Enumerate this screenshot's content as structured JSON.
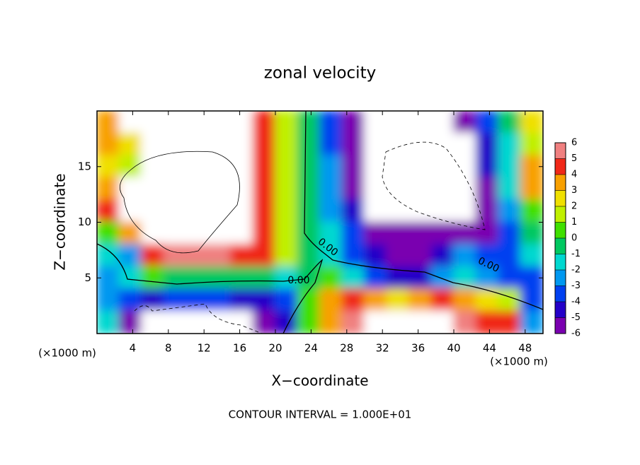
{
  "chart_data": {
    "type": "contour",
    "title": "zonal velocity",
    "x_label": "X−coordinate",
    "y_label": "Z−coordinate",
    "x_unit_labels": [
      "(×1000 m)",
      "(×1000 m)"
    ],
    "footer": "CONTOUR INTERVAL = 1.000E+01",
    "contour_labels": [
      "0.00",
      "0.00",
      "0.00"
    ],
    "xlim": [
      0,
      50
    ],
    "ylim": [
      0,
      20
    ],
    "xticks": [
      4,
      8,
      12,
      16,
      20,
      24,
      28,
      32,
      36,
      40,
      44,
      48
    ],
    "yticks": [
      5,
      10,
      15
    ],
    "x": [
      1.25,
      3.75,
      6.25,
      8.75,
      11.25,
      13.75,
      16.25,
      18.75,
      21.25,
      23.75,
      26.25,
      28.75,
      31.25,
      33.75,
      36.25,
      38.75,
      41.25,
      43.75,
      46.25,
      48.75
    ],
    "y": [
      19,
      17,
      15,
      13,
      11,
      9,
      7,
      5,
      3,
      1
    ],
    "z": [
      [
        4,
        10,
        10,
        10,
        10,
        10,
        10,
        5,
        2,
        0,
        -3,
        -5,
        -10,
        -10,
        -10,
        -10,
        -5,
        -3,
        0,
        3
      ],
      [
        4,
        3,
        10,
        10,
        10,
        10,
        10,
        5,
        2,
        0,
        -3,
        -5,
        -10,
        -10,
        -10,
        -10,
        -10,
        -4,
        -1,
        2
      ],
      [
        3,
        2,
        10,
        10,
        10,
        10,
        10,
        5,
        2,
        0,
        -2,
        -5,
        -10,
        -10,
        -10,
        -10,
        -10,
        -4,
        -1,
        4
      ],
      [
        4,
        10,
        10,
        10,
        10,
        10,
        10,
        5,
        2,
        0,
        -2,
        -5,
        -10,
        -10,
        -10,
        -10,
        -10,
        -5,
        -1,
        4
      ],
      [
        5,
        10,
        10,
        10,
        10,
        10,
        10,
        5,
        2,
        0,
        -2,
        -4,
        -10,
        -10,
        -10,
        -10,
        -10,
        -6,
        -2,
        1
      ],
      [
        1,
        4,
        10,
        10,
        10,
        10,
        10,
        5,
        2,
        0,
        -1,
        -3,
        -5,
        -6,
        -6,
        -6,
        -5,
        -6,
        -3,
        0
      ],
      [
        -1,
        -2,
        5,
        6,
        6,
        6,
        5,
        5,
        2,
        0,
        -1,
        -3,
        -4,
        -5,
        -5,
        -4,
        -2,
        -3,
        -3,
        -1
      ],
      [
        -2,
        -1,
        1,
        0,
        0,
        0,
        0,
        0,
        -1,
        0,
        1,
        -1,
        -3,
        -4,
        -4,
        -2,
        -1,
        -2,
        -3,
        -3
      ],
      [
        -2,
        -3,
        -4,
        -3,
        -3,
        -3,
        -4,
        -4,
        -3,
        1,
        4,
        5,
        4,
        3,
        4,
        5,
        4,
        3,
        2,
        -3
      ],
      [
        -1,
        -5,
        -10,
        -10,
        -10,
        -10,
        -8,
        -5,
        -4,
        1,
        4,
        6,
        10,
        10,
        10,
        10,
        6,
        5,
        5,
        -2
      ]
    ],
    "colorbar_ticks": [
      -6,
      -5,
      -4,
      -3,
      -2,
      -1,
      0,
      1,
      2,
      3,
      4,
      5,
      6
    ],
    "colors": [
      "#7a00b0",
      "#2400c8",
      "#0040f0",
      "#0098f0",
      "#00d8d0",
      "#00c860",
      "#40e000",
      "#c0f000",
      "#f0e000",
      "#f8a000",
      "#f02818",
      "#f08080"
    ]
  }
}
